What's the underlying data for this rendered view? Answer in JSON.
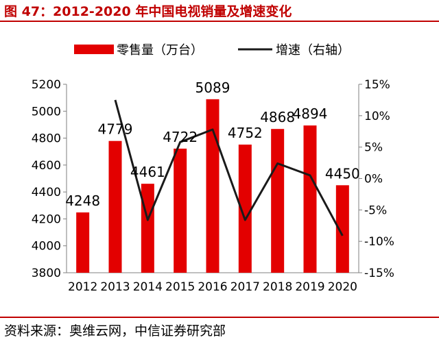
{
  "title": "图 47：2012-2020 年中国电视销量及增速变化",
  "source": "资料来源：奥维云网，中信证券研究部",
  "colors": {
    "bar": "#e30000",
    "line": "#1a1a1a",
    "accent": "#c00000"
  },
  "chart_data": {
    "type": "bar",
    "categories": [
      "2012",
      "2013",
      "2014",
      "2015",
      "2016",
      "2017",
      "2018",
      "2019",
      "2020"
    ],
    "series": [
      {
        "name": "零售量（万台）",
        "type": "bar",
        "axis": "left",
        "values": [
          4248,
          4779,
          4461,
          4722,
          5089,
          4752,
          4868,
          4894,
          4450
        ]
      },
      {
        "name": "增速（右轴）",
        "type": "line",
        "axis": "right",
        "values": [
          null,
          12.5,
          -6.6,
          5.8,
          7.8,
          -6.6,
          2.4,
          0.5,
          -9.1
        ]
      }
    ],
    "data_labels": [
      "4248",
      "4779",
      "4461",
      "4722",
      "5089",
      "4752",
      "4868",
      "4894",
      "4450"
    ],
    "y_left": {
      "min": 3800,
      "max": 5200,
      "ticks": [
        "3800",
        "4000",
        "4200",
        "4400",
        "4600",
        "4800",
        "5000",
        "5200"
      ]
    },
    "y_right": {
      "min": -15,
      "max": 15,
      "ticks": [
        "-15%",
        "-10%",
        "-5%",
        "0%",
        "5%",
        "10%",
        "15%"
      ]
    },
    "legend_position": "top-center",
    "grid": false
  }
}
